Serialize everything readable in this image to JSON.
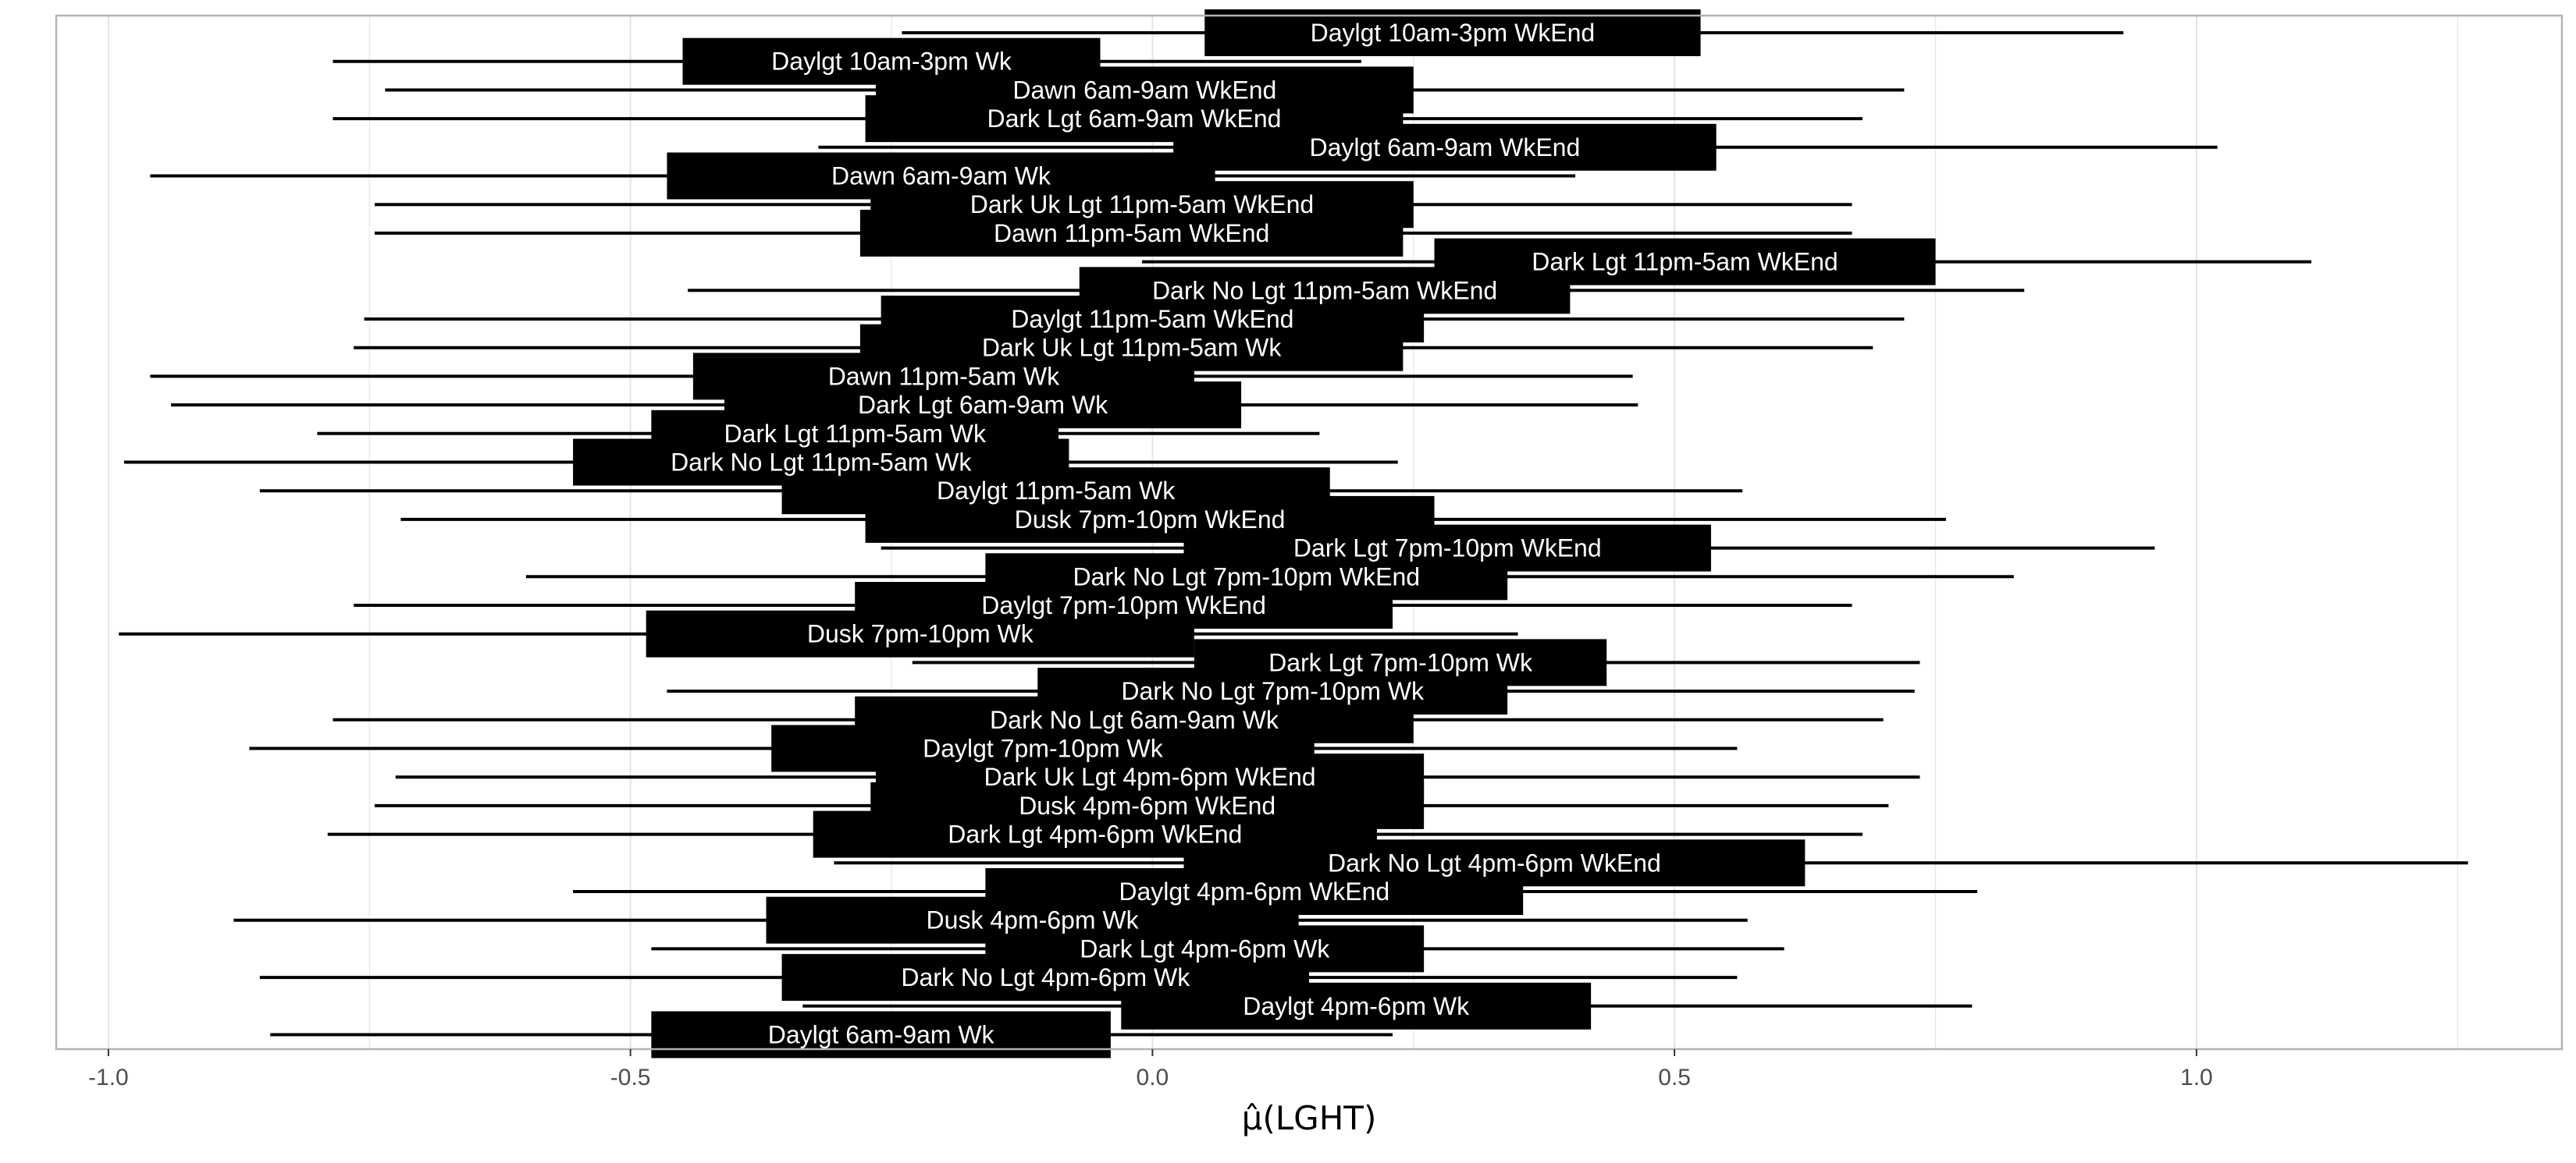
{
  "chart_data": {
    "type": "interval",
    "xlabel": "μ̂(LGHT)",
    "xlim": [
      -1.05,
      1.35
    ],
    "x_ticks": [
      -1.0,
      -0.5,
      0.0,
      0.5,
      1.0
    ],
    "x_tick_labels": [
      "-1.0",
      "-0.5",
      "0.0",
      "0.5",
      "1.0"
    ],
    "grid": true,
    "rows": [
      {
        "label": "Daylgt 10am-3pm WkEnd",
        "low": -0.24,
        "q1": 0.05,
        "q3": 0.525,
        "high": 0.93
      },
      {
        "label": "Daylgt 10am-3pm Wk",
        "low": -0.785,
        "q1": -0.45,
        "q3": -0.05,
        "high": 0.2
      },
      {
        "label": "Dawn 6am-9am WkEnd",
        "low": -0.735,
        "q1": -0.265,
        "q3": 0.25,
        "high": 0.72
      },
      {
        "label": "Dark Lgt 6am-9am WkEnd",
        "low": -0.785,
        "q1": -0.275,
        "q3": 0.24,
        "high": 0.68
      },
      {
        "label": "Daylgt 6am-9am WkEnd",
        "low": -0.32,
        "q1": 0.02,
        "q3": 0.54,
        "high": 1.02
      },
      {
        "label": "Dawn 6am-9am Wk",
        "low": -0.96,
        "q1": -0.465,
        "q3": 0.06,
        "high": 0.405
      },
      {
        "label": "Dark Uk Lgt 11pm-5am WkEnd",
        "low": -0.745,
        "q1": -0.27,
        "q3": 0.25,
        "high": 0.67
      },
      {
        "label": "Dawn 11pm-5am WkEnd",
        "low": -0.745,
        "q1": -0.28,
        "q3": 0.24,
        "high": 0.67
      },
      {
        "label": "Dark Lgt 11pm-5am WkEnd",
        "low": -0.01,
        "q1": 0.27,
        "q3": 0.75,
        "high": 1.11
      },
      {
        "label": "Dark No Lgt 11pm-5am WkEnd",
        "low": -0.445,
        "q1": -0.07,
        "q3": 0.4,
        "high": 0.835
      },
      {
        "label": "Daylgt 11pm-5am WkEnd",
        "low": -0.755,
        "q1": -0.26,
        "q3": 0.26,
        "high": 0.72
      },
      {
        "label": "Dark Uk Lgt 11pm-5am Wk",
        "low": -0.765,
        "q1": -0.28,
        "q3": 0.24,
        "high": 0.69
      },
      {
        "label": "Dawn 11pm-5am Wk",
        "low": -0.96,
        "q1": -0.44,
        "q3": 0.04,
        "high": 0.46
      },
      {
        "label": "Dark Lgt 6am-9am Wk",
        "low": -0.94,
        "q1": -0.41,
        "q3": 0.085,
        "high": 0.465
      },
      {
        "label": "Dark Lgt 11pm-5am Wk",
        "low": -0.8,
        "q1": -0.48,
        "q3": -0.09,
        "high": 0.16
      },
      {
        "label": "Dark No Lgt 11pm-5am Wk",
        "low": -0.985,
        "q1": -0.555,
        "q3": -0.08,
        "high": 0.235
      },
      {
        "label": "Daylgt 11pm-5am Wk",
        "low": -0.855,
        "q1": -0.355,
        "q3": 0.17,
        "high": 0.565
      },
      {
        "label": "Dusk 7pm-10pm WkEnd",
        "low": -0.72,
        "q1": -0.275,
        "q3": 0.27,
        "high": 0.76
      },
      {
        "label": "Dark Lgt 7pm-10pm WkEnd",
        "low": -0.26,
        "q1": 0.03,
        "q3": 0.535,
        "high": 0.96
      },
      {
        "label": "Dark No Lgt 7pm-10pm WkEnd",
        "low": -0.6,
        "q1": -0.16,
        "q3": 0.34,
        "high": 0.825
      },
      {
        "label": "Daylgt 7pm-10pm WkEnd",
        "low": -0.765,
        "q1": -0.285,
        "q3": 0.23,
        "high": 0.67
      },
      {
        "label": "Dusk 7pm-10pm Wk",
        "low": -0.99,
        "q1": -0.485,
        "q3": 0.04,
        "high": 0.35
      },
      {
        "label": "Dark Lgt 7pm-10pm Wk",
        "low": -0.23,
        "q1": 0.04,
        "q3": 0.435,
        "high": 0.735
      },
      {
        "label": "Dark No Lgt 7pm-10pm Wk",
        "low": -0.465,
        "q1": -0.11,
        "q3": 0.34,
        "high": 0.73
      },
      {
        "label": "Dark No Lgt 6am-9am Wk",
        "low": -0.785,
        "q1": -0.285,
        "q3": 0.25,
        "high": 0.7
      },
      {
        "label": "Daylgt 7pm-10pm Wk",
        "low": -0.865,
        "q1": -0.365,
        "q3": 0.155,
        "high": 0.56
      },
      {
        "label": "Dark Uk Lgt 4pm-6pm WkEnd",
        "low": -0.725,
        "q1": -0.265,
        "q3": 0.26,
        "high": 0.735
      },
      {
        "label": "Dusk 4pm-6pm WkEnd",
        "low": -0.745,
        "q1": -0.27,
        "q3": 0.26,
        "high": 0.705
      },
      {
        "label": "Dark Lgt 4pm-6pm WkEnd",
        "low": -0.79,
        "q1": -0.325,
        "q3": 0.215,
        "high": 0.68
      },
      {
        "label": "Dark No Lgt 4pm-6pm WkEnd",
        "low": -0.305,
        "q1": 0.03,
        "q3": 0.625,
        "high": 1.26
      },
      {
        "label": "Daylgt 4pm-6pm WkEnd",
        "low": -0.555,
        "q1": -0.16,
        "q3": 0.355,
        "high": 0.79
      },
      {
        "label": "Dusk 4pm-6pm Wk",
        "low": -0.88,
        "q1": -0.37,
        "q3": 0.14,
        "high": 0.57
      },
      {
        "label": "Dark Lgt 4pm-6pm Wk",
        "low": -0.48,
        "q1": -0.16,
        "q3": 0.26,
        "high": 0.605
      },
      {
        "label": "Dark No Lgt 4pm-6pm Wk",
        "low": -0.855,
        "q1": -0.355,
        "q3": 0.15,
        "high": 0.56
      },
      {
        "label": "Daylgt 4pm-6pm Wk",
        "low": -0.335,
        "q1": -0.03,
        "q3": 0.42,
        "high": 0.785
      },
      {
        "label": "Daylgt 6am-9am Wk",
        "low": -0.845,
        "q1": -0.48,
        "q3": -0.04,
        "high": 0.23
      }
    ]
  }
}
